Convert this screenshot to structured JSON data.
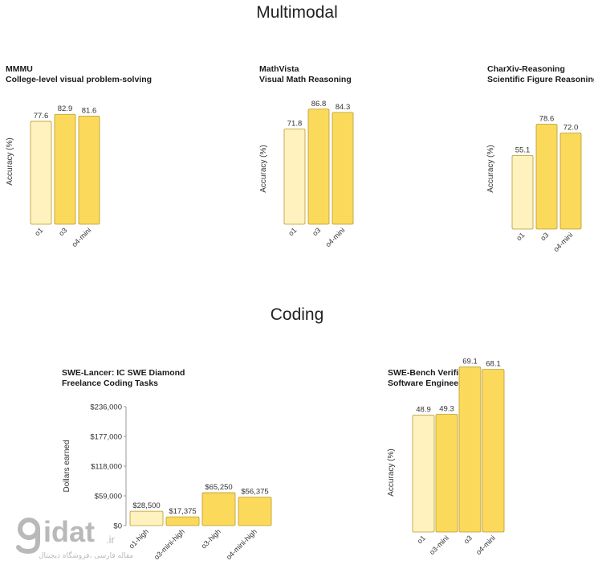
{
  "sections": {
    "multimodal": "Multimodal",
    "coding": "Coding"
  },
  "colors": {
    "o1": "#FFF2BF",
    "o3_family": "#FBDA5B",
    "bar_stroke": "#B99A2C",
    "axis": "#999999",
    "watermark": "#B9B9B9"
  },
  "watermark": {
    "logo_text": "gidat.ir",
    "tagline": "مقاله فارسی ،فروشگاه دیجیتال"
  },
  "chart_data": [
    {
      "type": "bar",
      "title": "MMMU",
      "subtitle": "College-level visual problem-solving",
      "ylabel": "Accuracy (%)",
      "categories": [
        "o1",
        "o3",
        "o4-mini"
      ],
      "values": [
        77.6,
        82.9,
        81.6
      ],
      "value_labels": [
        "77.6",
        "82.9",
        "81.6"
      ],
      "ylim": [
        0,
        100
      ],
      "grid": false
    },
    {
      "type": "bar",
      "title": "MathVista",
      "subtitle": "Visual Math Reasoning",
      "ylabel": "Accuracy (%)",
      "categories": [
        "o1",
        "o3",
        "o4-mini"
      ],
      "values": [
        71.8,
        86.8,
        84.3
      ],
      "value_labels": [
        "71.8",
        "86.8",
        "84.3"
      ],
      "ylim": [
        0,
        100
      ],
      "grid": false
    },
    {
      "type": "bar",
      "title": "CharXiv-Reasoning",
      "subtitle": "Scientific Figure Reasoning",
      "ylabel": "Accuracy (%)",
      "categories": [
        "o1",
        "o3",
        "o4-mini"
      ],
      "values": [
        55.1,
        78.6,
        72.0
      ],
      "value_labels": [
        "55.1",
        "78.6",
        "72.0"
      ],
      "ylim": [
        0,
        100
      ],
      "grid": false
    },
    {
      "type": "bar",
      "title": "SWE-Lancer: IC SWE Diamond",
      "subtitle": "Freelance Coding Tasks",
      "ylabel": "Dollars earned",
      "categories": [
        "o1-high",
        "o3-mini-high",
        "o3-high",
        "o4-mini-high"
      ],
      "values": [
        28500,
        17375,
        65250,
        56375
      ],
      "value_labels": [
        "$28,500",
        "$17,375",
        "$65,250",
        "$56,375"
      ],
      "yticks": [
        0,
        59000,
        118000,
        177000,
        236000
      ],
      "ytick_labels": [
        "$0",
        "$59,000",
        "$118,000",
        "$177,000",
        "$236,000"
      ],
      "ylim": [
        0,
        236000
      ],
      "grid": false
    },
    {
      "type": "bar",
      "title": "SWE-Bench Verified",
      "subtitle": "Software Engineering",
      "ylabel": "Accuracy (%)",
      "categories": [
        "o1",
        "o3-mini",
        "o3",
        "o4-mini"
      ],
      "values": [
        48.9,
        49.3,
        69.1,
        68.1
      ],
      "value_labels": [
        "48.9",
        "49.3",
        "69.1",
        "68.1"
      ],
      "ylim": [
        0,
        70
      ],
      "grid": false
    }
  ]
}
